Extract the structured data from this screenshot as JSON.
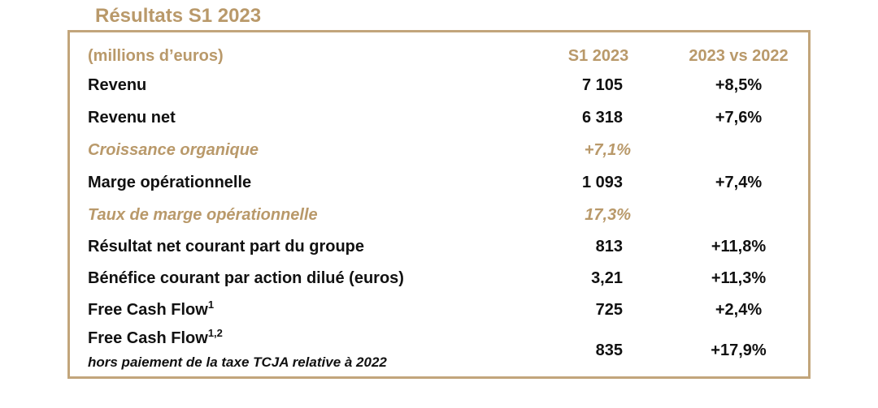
{
  "title": "Résultats S1 2023",
  "header": {
    "unit": "(millions d’euros)",
    "col1": "S1 2023",
    "col2": "2023 vs 2022"
  },
  "rows": [
    {
      "label": "Revenu",
      "value": "7 105",
      "variation": "+8,5%"
    },
    {
      "label": "Revenu net",
      "value": "6 318",
      "variation": "+7,6%"
    },
    {
      "label": "Croissance organique",
      "value": "+7,1%",
      "variation": ""
    },
    {
      "label": "Marge opérationnelle",
      "value": "1 093",
      "variation": "+7,4%"
    },
    {
      "label": "Taux de marge opérationnelle",
      "value": "17,3%",
      "variation": ""
    },
    {
      "label": "Résultat net courant part du groupe",
      "value": "813",
      "variation": "+11,8%"
    },
    {
      "label": "Bénéfice courant par action dilué (euros)",
      "value": "3,21",
      "variation": "+11,3%"
    },
    {
      "label": "Free Cash Flow",
      "sup": "1",
      "value": "725",
      "variation": "+2,4%"
    },
    {
      "label": "Free Cash Flow",
      "sup": "1,2",
      "sublabel": "hors paiement de la taxe TCJA relative à 2022",
      "value": "835",
      "variation": "+17,9%"
    }
  ]
}
